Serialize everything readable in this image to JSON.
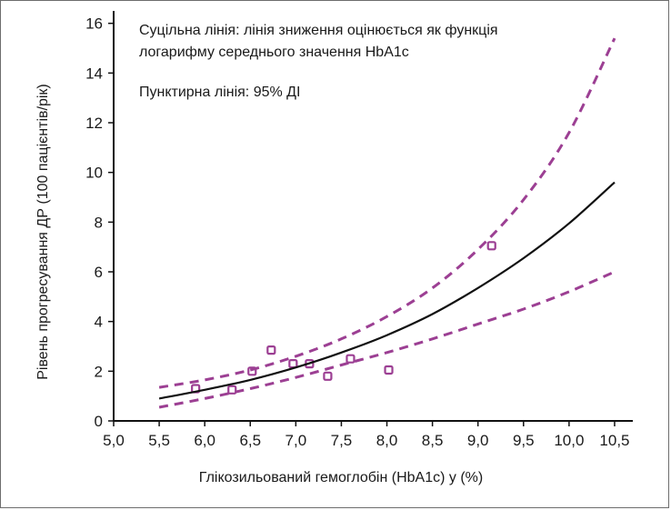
{
  "chart_data": {
    "type": "scatter",
    "xlabel": "Глікозильований гемоглобін (HbA1c) у (%)",
    "ylabel": "Рівень прогресування ДР (100 пацієнтів/рік)",
    "xlim": [
      5.0,
      10.7
    ],
    "ylim": [
      0,
      16.5
    ],
    "x_ticks": [
      5.0,
      5.5,
      6.0,
      6.5,
      7.0,
      7.5,
      8.0,
      8.5,
      9.0,
      9.5,
      10.0,
      10.5
    ],
    "x_tick_labels": [
      "5,0",
      "5,5",
      "6,0",
      "6,5",
      "7,0",
      "7,5",
      "8,0",
      "8,5",
      "9,0",
      "9,5",
      "10,0",
      "10,5"
    ],
    "y_ticks": [
      0,
      2,
      4,
      6,
      8,
      10,
      12,
      14,
      16
    ],
    "y_tick_labels": [
      "0",
      "2",
      "4",
      "6",
      "8",
      "10",
      "12",
      "14",
      "16"
    ],
    "grid": false,
    "annotations": [
      "Суцільна лінія: лінія зниження оцінюється як функція",
      "логарифму середнього значення HbA1c",
      "Пунктирна лінія: 95% ДІ"
    ],
    "series": [
      {
        "kind": "points",
        "marker": "open-square",
        "color": "#9c3f93",
        "points": [
          {
            "x": 5.9,
            "y": 1.3
          },
          {
            "x": 6.3,
            "y": 1.25
          },
          {
            "x": 6.52,
            "y": 2.0
          },
          {
            "x": 6.73,
            "y": 2.85
          },
          {
            "x": 6.97,
            "y": 2.3
          },
          {
            "x": 7.15,
            "y": 2.3
          },
          {
            "x": 7.35,
            "y": 1.8
          },
          {
            "x": 7.6,
            "y": 2.5
          },
          {
            "x": 8.02,
            "y": 2.05
          },
          {
            "x": 9.15,
            "y": 7.05
          }
        ]
      },
      {
        "kind": "line",
        "style": "solid",
        "color": "#111111",
        "points": [
          {
            "x": 5.5,
            "y": 0.9
          },
          {
            "x": 6.0,
            "y": 1.25
          },
          {
            "x": 6.5,
            "y": 1.65
          },
          {
            "x": 7.0,
            "y": 2.15
          },
          {
            "x": 7.5,
            "y": 2.75
          },
          {
            "x": 8.0,
            "y": 3.45
          },
          {
            "x": 8.5,
            "y": 4.3
          },
          {
            "x": 9.0,
            "y": 5.35
          },
          {
            "x": 9.5,
            "y": 6.55
          },
          {
            "x": 10.0,
            "y": 7.95
          },
          {
            "x": 10.5,
            "y": 9.6
          }
        ]
      },
      {
        "kind": "line",
        "style": "dashed",
        "color": "#9c3f93",
        "points": [
          {
            "x": 5.5,
            "y": 1.35
          },
          {
            "x": 6.0,
            "y": 1.65
          },
          {
            "x": 6.5,
            "y": 2.05
          },
          {
            "x": 7.0,
            "y": 2.6
          },
          {
            "x": 7.5,
            "y": 3.3
          },
          {
            "x": 8.0,
            "y": 4.2
          },
          {
            "x": 8.5,
            "y": 5.35
          },
          {
            "x": 9.0,
            "y": 6.9
          },
          {
            "x": 9.5,
            "y": 8.9
          },
          {
            "x": 10.0,
            "y": 11.6
          },
          {
            "x": 10.5,
            "y": 15.4
          }
        ]
      },
      {
        "kind": "line",
        "style": "dashed",
        "color": "#9c3f93",
        "points": [
          {
            "x": 5.5,
            "y": 0.55
          },
          {
            "x": 6.0,
            "y": 0.9
          },
          {
            "x": 6.5,
            "y": 1.3
          },
          {
            "x": 7.0,
            "y": 1.75
          },
          {
            "x": 7.5,
            "y": 2.25
          },
          {
            "x": 8.0,
            "y": 2.75
          },
          {
            "x": 8.5,
            "y": 3.3
          },
          {
            "x": 9.0,
            "y": 3.9
          },
          {
            "x": 9.5,
            "y": 4.5
          },
          {
            "x": 10.0,
            "y": 5.2
          },
          {
            "x": 10.5,
            "y": 6.0
          }
        ]
      }
    ]
  }
}
